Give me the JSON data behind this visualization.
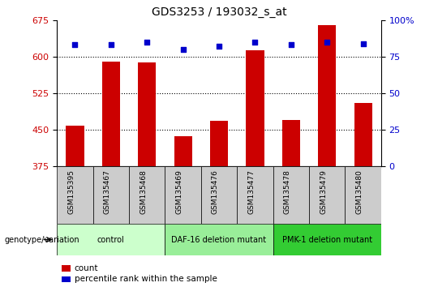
{
  "title": "GDS3253 / 193032_s_at",
  "samples": [
    "GSM135395",
    "GSM135467",
    "GSM135468",
    "GSM135469",
    "GSM135476",
    "GSM135477",
    "GSM135478",
    "GSM135479",
    "GSM135480"
  ],
  "counts": [
    458,
    590,
    588,
    437,
    468,
    613,
    470,
    665,
    505
  ],
  "percentiles": [
    83,
    83,
    85,
    80,
    82,
    85,
    83,
    85,
    84
  ],
  "groups": [
    {
      "label": "control",
      "start": 0,
      "end": 3,
      "color": "#ccffcc"
    },
    {
      "label": "DAF-16 deletion mutant",
      "start": 3,
      "end": 6,
      "color": "#99ee99"
    },
    {
      "label": "PMK-1 deletion mutant",
      "start": 6,
      "end": 9,
      "color": "#33cc33"
    }
  ],
  "ylim_left": [
    375,
    675
  ],
  "ylim_right": [
    0,
    100
  ],
  "yticks_left": [
    375,
    450,
    525,
    600,
    675
  ],
  "yticks_right": [
    0,
    25,
    50,
    75,
    100
  ],
  "bar_color": "#cc0000",
  "dot_color": "#0000cc",
  "bar_width": 0.5,
  "tick_label_bg": "#cccccc",
  "label_count": "count",
  "label_percentile": "percentile rank within the sample",
  "genotype_label": "genotype/variation"
}
